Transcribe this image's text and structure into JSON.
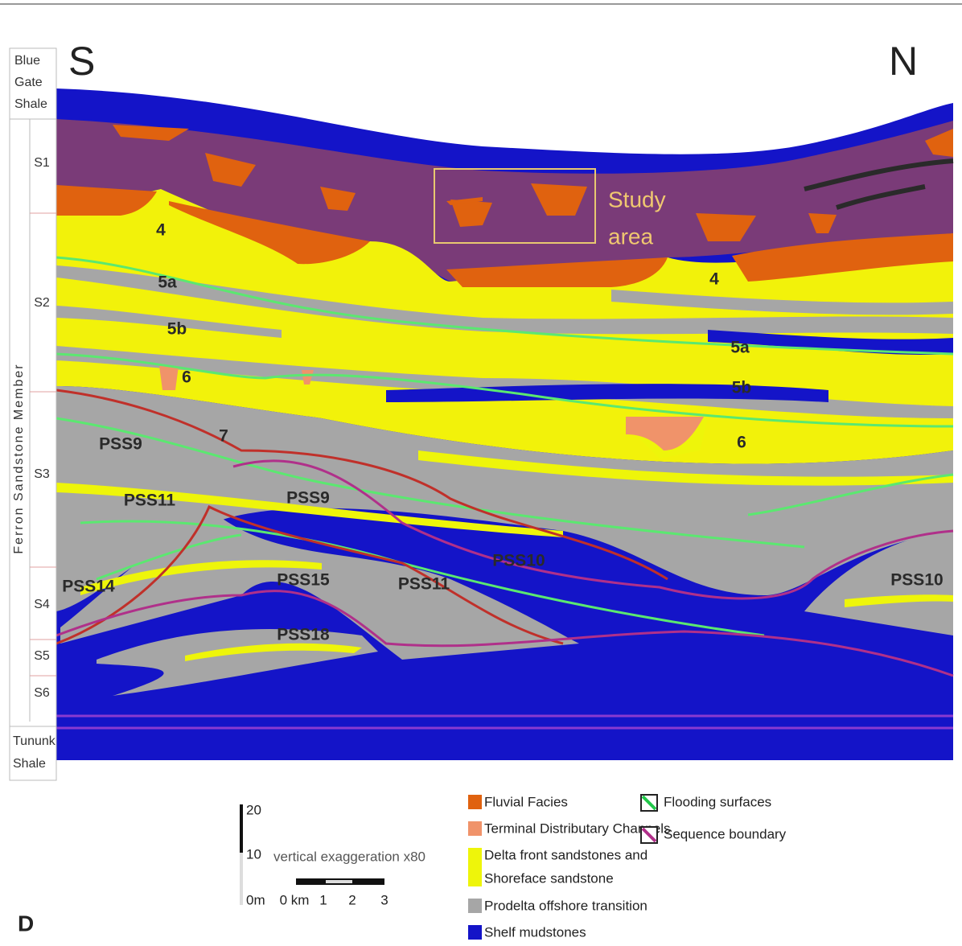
{
  "panel_label": "D",
  "orientation": {
    "left": "S",
    "right": "N"
  },
  "column": {
    "top_unit": [
      "Blue",
      "Gate",
      "Shale"
    ],
    "member": "Ferron Sandstone Member",
    "sequences": [
      "S1",
      "S2",
      "S3",
      "S4",
      "S5",
      "S6"
    ],
    "bottom_unit": [
      "Tununk",
      "Shale"
    ]
  },
  "study_area": [
    "Study",
    "area"
  ],
  "section_labels": [
    "4",
    "5a",
    "5b",
    "6",
    "7",
    "PSS9",
    "PSS11",
    "PSS14",
    "PSS15",
    "PSS18",
    "PSS9",
    "PSS11",
    "PSS10",
    "4",
    "5a",
    "5b",
    "6",
    "PSS10"
  ],
  "scale": {
    "vertical_ticks": [
      "20",
      "10",
      "0m"
    ],
    "caption": "vertical exaggeration x80",
    "horizontal_ticks": [
      "0 km",
      "1",
      "2",
      "3"
    ]
  },
  "legend": {
    "facies": [
      {
        "lines": [
          "Fluvial Facies"
        ],
        "color": "#e0620f"
      },
      {
        "lines": [
          "Terminal Distributary Channels"
        ],
        "color": "#f0936a"
      },
      {
        "lines": [
          "Delta front sandstones and",
          "Shoreface sandstone"
        ],
        "color": "#eef50a"
      },
      {
        "lines": [
          "Prodelta offshore transition"
        ],
        "color": "#a6a6a6"
      },
      {
        "lines": [
          "Shelf mudstones"
        ],
        "color": "#1414c8"
      }
    ],
    "surfaces": [
      {
        "label": "Flooding surfaces",
        "color": "#22c84a"
      },
      {
        "label": "Sequence boundary",
        "color": "#b0308a"
      }
    ]
  }
}
